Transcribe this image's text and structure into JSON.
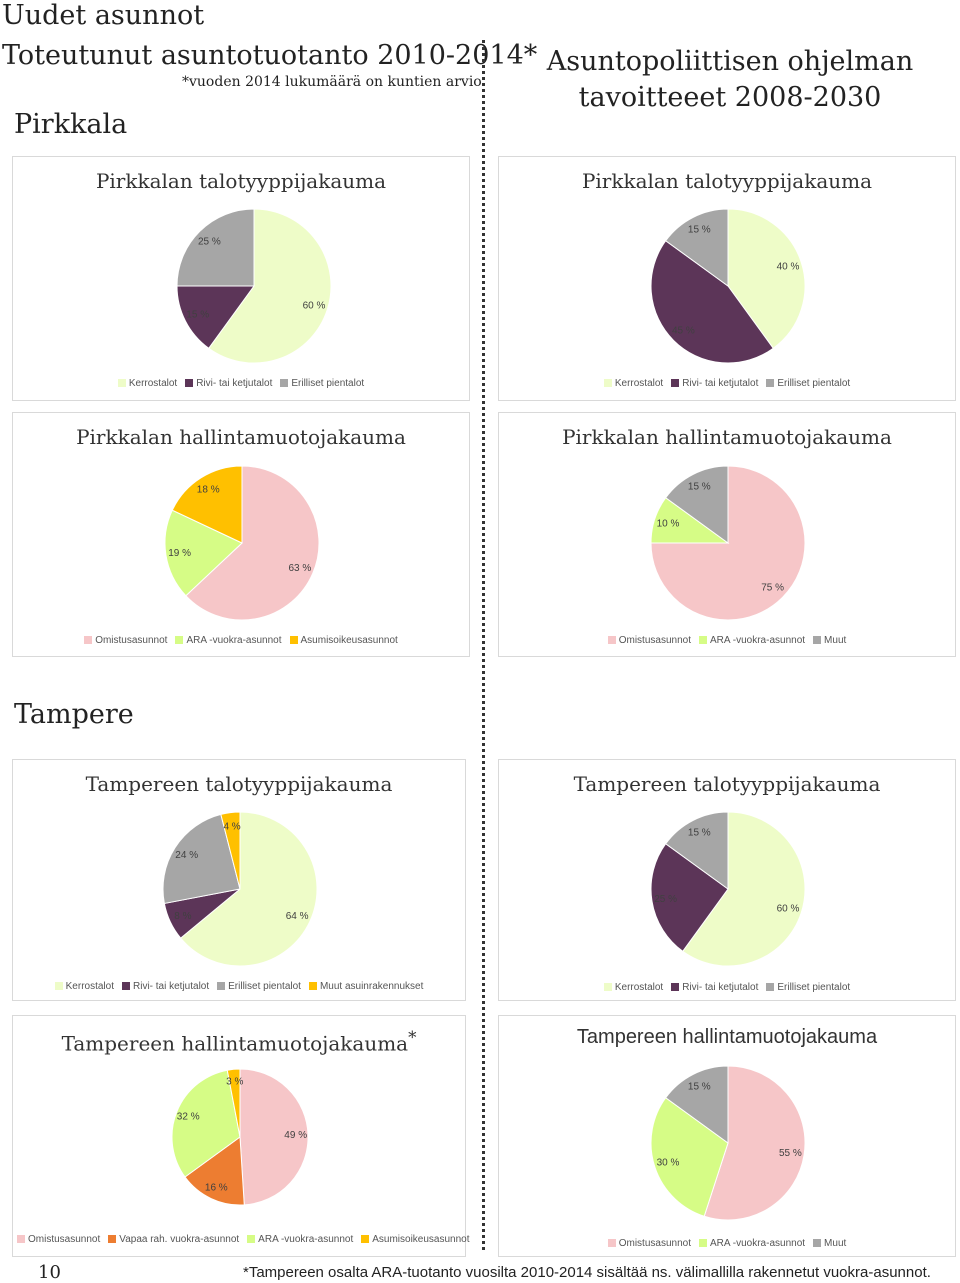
{
  "page": {
    "title": "Uudet asunnot",
    "left_heading": "Toteutunut asuntotuotanto 2010-2014*",
    "left_note": "*vuoden 2014 lukumäärä on kuntien arvio",
    "right_heading_line1": "Asuntopoliittisen ohjelman",
    "right_heading_line2": "tavoitteeet 2008-2030",
    "section_pirkkala": "Pirkkala",
    "section_tampere": "Tampere",
    "page_number": "10",
    "footnote": "*Tampereen osalta ARA-tuotanto vuosilta 2010-2014 sisältää ns. välimallilla rakennetut vuokra-asunnot."
  },
  "colors": {
    "Kerrostalot": "#eefcc8",
    "Rivi- tai ketjutalot": "#5c3558",
    "Erilliset pientalot": "#a6a6a6",
    "Muut asuinrakennukset": "#ffc000",
    "Omistusasunnot": "#f6c6c8",
    "ARA -vuokra-asunnot": "#d6fc86",
    "Asumisoikeusasunnot": "#ffc000",
    "Vapaa rah. vuokra-asunnot": "#ed7d31",
    "Muut": "#a6a6a6"
  },
  "chart_data": [
    {
      "id": "pirkkala-talo-toteutunut",
      "type": "pie",
      "title": "Pirkkalan talotyyppijakauma",
      "slices": [
        {
          "name": "Kerrostalot",
          "value": 60,
          "label": "60 %"
        },
        {
          "name": "Rivi- tai ketjutalot",
          "value": 15,
          "label": "15 %"
        },
        {
          "name": "Erilliset pientalot",
          "value": 25,
          "label": "25 %"
        }
      ],
      "legend": [
        "Kerrostalot",
        "Rivi- tai ketjutalot",
        "Erilliset pientalot"
      ]
    },
    {
      "id": "pirkkala-talo-tavoite",
      "type": "pie",
      "title": "Pirkkalan talotyyppijakauma",
      "slices": [
        {
          "name": "Kerrostalot",
          "value": 40,
          "label": "40 %"
        },
        {
          "name": "Rivi- tai ketjutalot",
          "value": 45,
          "label": "45 %"
        },
        {
          "name": "Erilliset pientalot",
          "value": 15,
          "label": "15 %"
        }
      ],
      "legend": [
        "Kerrostalot",
        "Rivi- tai ketjutalot",
        "Erilliset pientalot"
      ]
    },
    {
      "id": "pirkkala-hallinta-toteutunut",
      "type": "pie",
      "title": "Pirkkalan hallintamuotojakauma",
      "slices": [
        {
          "name": "Omistusasunnot",
          "value": 63,
          "label": "63 %"
        },
        {
          "name": "ARA -vuokra-asunnot",
          "value": 19,
          "label": "19 %"
        },
        {
          "name": "Asumisoikeusasunnot",
          "value": 18,
          "label": "18 %"
        }
      ],
      "legend": [
        "Omistusasunnot",
        "ARA -vuokra-asunnot",
        "Asumisoikeusasunnot"
      ]
    },
    {
      "id": "pirkkala-hallinta-tavoite",
      "type": "pie",
      "title": "Pirkkalan hallintamuotojakauma",
      "slices": [
        {
          "name": "Omistusasunnot",
          "value": 75,
          "label": "75 %"
        },
        {
          "name": "ARA -vuokra-asunnot",
          "value": 10,
          "label": "10 %"
        },
        {
          "name": "Muut",
          "value": 15,
          "label": "15 %"
        }
      ],
      "legend": [
        "Omistusasunnot",
        "ARA -vuokra-asunnot",
        "Muut"
      ]
    },
    {
      "id": "tampere-talo-toteutunut",
      "type": "pie",
      "title": "Tampereen talotyyppijakauma",
      "slices": [
        {
          "name": "Kerrostalot",
          "value": 64,
          "label": "64 %"
        },
        {
          "name": "Rivi- tai ketjutalot",
          "value": 8,
          "label": "8 %"
        },
        {
          "name": "Erilliset pientalot",
          "value": 24,
          "label": "24 %"
        },
        {
          "name": "Muut asuinrakennukset",
          "value": 4,
          "label": "4 %"
        }
      ],
      "legend": [
        "Kerrostalot",
        "Rivi- tai ketjutalot",
        "Erilliset pientalot",
        "Muut asuinrakennukset"
      ]
    },
    {
      "id": "tampere-talo-tavoite",
      "type": "pie",
      "title": "Tampereen talotyyppijakauma",
      "slices": [
        {
          "name": "Kerrostalot",
          "value": 60,
          "label": "60 %"
        },
        {
          "name": "Rivi- tai ketjutalot",
          "value": 25,
          "label": "25 %"
        },
        {
          "name": "Erilliset pientalot",
          "value": 15,
          "label": "15 %"
        }
      ],
      "legend": [
        "Kerrostalot",
        "Rivi- tai ketjutalot",
        "Erilliset pientalot"
      ]
    },
    {
      "id": "tampere-hallinta-toteutunut",
      "type": "pie",
      "title": "Tampereen hallintamuotojakauma",
      "title_mark": "*",
      "slices": [
        {
          "name": "Omistusasunnot",
          "value": 49,
          "label": "49 %"
        },
        {
          "name": "Vapaa rah. vuokra-asunnot",
          "value": 16,
          "label": "16 %"
        },
        {
          "name": "ARA -vuokra-asunnot",
          "value": 32,
          "label": "32 %"
        },
        {
          "name": "Asumisoikeusasunnot",
          "value": 3,
          "label": "3 %"
        }
      ],
      "legend": [
        "Omistusasunnot",
        "Vapaa rah. vuokra-asunnot",
        "ARA -vuokra-asunnot",
        "Asumisoikeusasunnot"
      ]
    },
    {
      "id": "tampere-hallinta-tavoite",
      "type": "pie",
      "title": "Tampereen hallintamuotojakauma",
      "slices": [
        {
          "name": "Omistusasunnot",
          "value": 55,
          "label": "55 %"
        },
        {
          "name": "ARA -vuokra-asunnot",
          "value": 30,
          "label": "30 %"
        },
        {
          "name": "Muut",
          "value": 15,
          "label": "15 %"
        }
      ],
      "legend": [
        "Omistusasunnot",
        "ARA -vuokra-asunnot",
        "Muut"
      ]
    }
  ]
}
